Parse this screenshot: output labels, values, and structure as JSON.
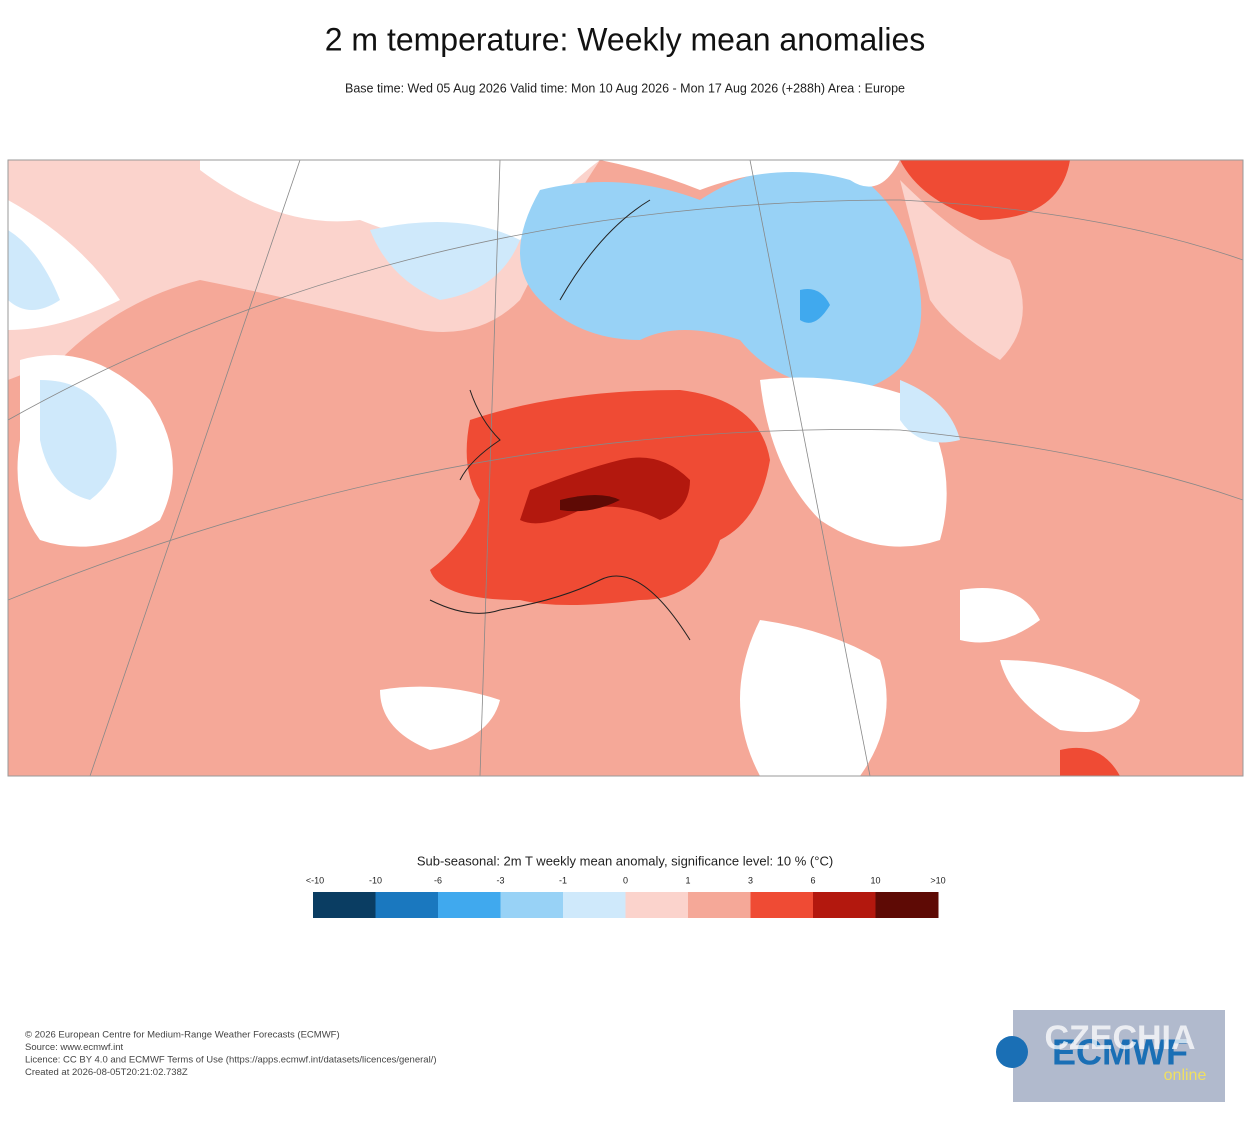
{
  "header": {
    "title": "2 m temperature: Weekly mean anomalies",
    "subtitle": "Base time: Wed 05 Aug 2026 Valid time: Mon 10 Aug 2026 - Mon 17 Aug 2026 (+288h) Area : Europe"
  },
  "legend": {
    "title": "Sub-seasonal: 2m T weekly mean anomaly, significance level: 10 % (°C)",
    "labels": [
      "<-10",
      "-10",
      "-6",
      "-3",
      "-1",
      "0",
      "1",
      "3",
      "6",
      "10",
      ">10"
    ],
    "colors": [
      "#0a3d62",
      "#1a78bf",
      "#40a9ee",
      "#98d2f6",
      "#cfe9fb",
      "#fbd3cc",
      "#f5a898",
      "#ef4b34",
      "#b3180e",
      "#5e0a05"
    ]
  },
  "footer": {
    "lines": [
      "© 2026 European Centre for Medium-Range Weather Forecasts (ECMWF)",
      "Source: www.ecmwf.int",
      "Licence: CC BY 4.0 and ECMWF Terms of Use (https://apps.ecmwf.int/datasets/licences/general/)",
      "Created at 2026-08-05T20:21:02.738Z"
    ]
  },
  "logo": {
    "brand": "ECMWF",
    "watermark": "CZECHIA",
    "watermark_sub": "online"
  }
}
